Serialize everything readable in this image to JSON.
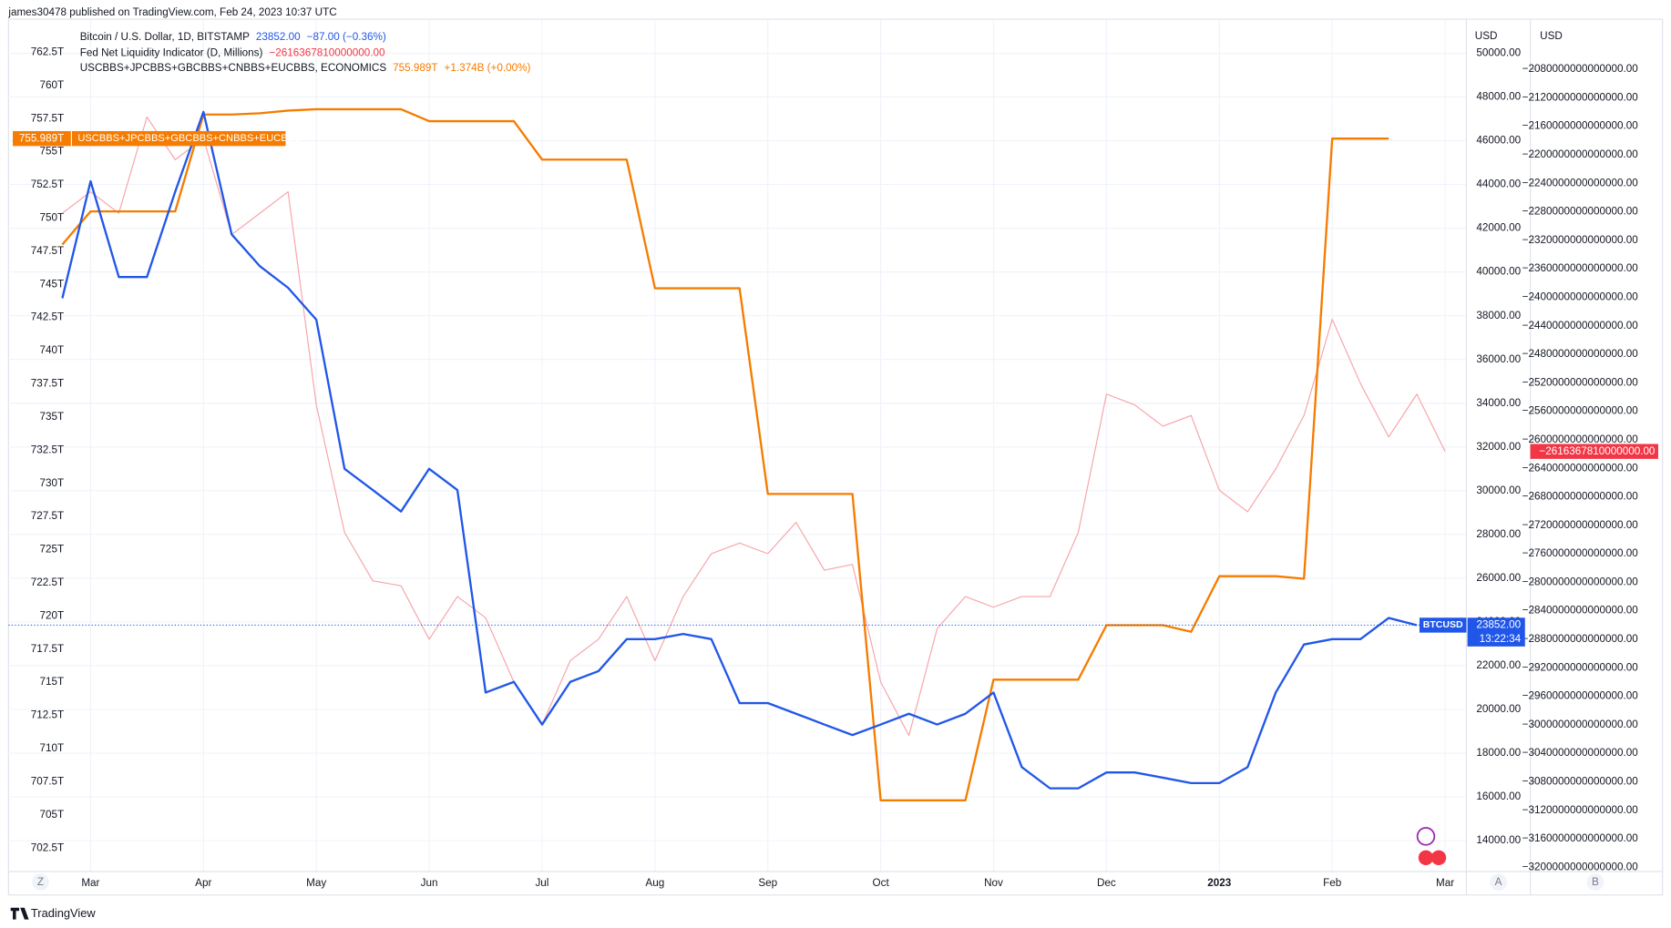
{
  "header": "james30478 published on TradingView.com, Feb 24, 2023 10:37 UTC",
  "footer": "TradingView",
  "buttons": {
    "zoom": "Z",
    "auto": "A",
    "log": "B"
  },
  "chart_data": {
    "type": "line",
    "categories": [
      null,
      "Mar",
      null,
      null,
      null,
      "Apr",
      null,
      null,
      null,
      "May",
      null,
      null,
      null,
      "Jun",
      null,
      null,
      null,
      "Jul",
      null,
      null,
      null,
      "Aug",
      null,
      null,
      null,
      "Sep",
      null,
      null,
      null,
      "Oct",
      null,
      null,
      null,
      "Nov",
      null,
      null,
      null,
      "Dec",
      null,
      null,
      null,
      "2023",
      null,
      null,
      null,
      "Feb",
      null,
      null,
      null,
      "Mar"
    ],
    "grid": true,
    "y_label": "USD",
    "y2_label": "USD",
    "ylim": [
      12490,
      51461
    ],
    "yticks": [
      {
        "value": 14000,
        "label": "14000.00"
      },
      {
        "value": 16000,
        "label": "16000.00"
      },
      {
        "value": 18000,
        "label": "18000.00"
      },
      {
        "value": 20000,
        "label": "20000.00"
      },
      {
        "value": 22000,
        "label": "22000.00"
      },
      {
        "value": 24000,
        "label": "24000.00"
      },
      {
        "value": 26000,
        "label": "26000.00"
      },
      {
        "value": 28000,
        "label": "28000.00"
      },
      {
        "value": 30000,
        "label": "30000.00"
      },
      {
        "value": 32000,
        "label": "32000.00"
      },
      {
        "value": 34000,
        "label": "34000.00"
      },
      {
        "value": 36000,
        "label": "36000.00"
      },
      {
        "value": 38000,
        "label": "38000.00"
      },
      {
        "value": 40000,
        "label": "40000.00"
      },
      {
        "value": 42000,
        "label": "42000.00"
      },
      {
        "value": 44000,
        "label": "44000.00"
      },
      {
        "value": 46000,
        "label": "46000.00"
      },
      {
        "value": 48000,
        "label": "48000.00"
      },
      {
        "value": 50000,
        "label": "50000.00"
      }
    ],
    "y2lim": [
      -3209000000000000,
      -2012700000000000
    ],
    "y2ticks": [
      {
        "value": -2080000000000000,
        "label": "−2080000000000000.00"
      },
      {
        "value": -2120000000000000,
        "label": "−2120000000000000.00"
      },
      {
        "value": -2160000000000000,
        "label": "−2160000000000000.00"
      },
      {
        "value": -2200000000000000,
        "label": "−2200000000000000.00"
      },
      {
        "value": -2240000000000000,
        "label": "−2240000000000000.00"
      },
      {
        "value": -2280000000000000,
        "label": "−2280000000000000.00"
      },
      {
        "value": -2320000000000000,
        "label": "−2320000000000000.00"
      },
      {
        "value": -2360000000000000,
        "label": "−2360000000000000.00"
      },
      {
        "value": -2400000000000000,
        "label": "−2400000000000000.00"
      },
      {
        "value": -2440000000000000,
        "label": "−2440000000000000.00"
      },
      {
        "value": -2480000000000000,
        "label": "−2480000000000000.00"
      },
      {
        "value": -2520000000000000,
        "label": "−2520000000000000.00"
      },
      {
        "value": -2560000000000000,
        "label": "−2560000000000000.00"
      },
      {
        "value": -2600000000000000,
        "label": "−2600000000000000.00"
      },
      {
        "value": -2640000000000000,
        "label": "−2640000000000000.00"
      },
      {
        "value": -2680000000000000,
        "label": "−2680000000000000.00"
      },
      {
        "value": -2720000000000000,
        "label": "−2720000000000000.00"
      },
      {
        "value": -2760000000000000,
        "label": "−2760000000000000.00"
      },
      {
        "value": -2800000000000000,
        "label": "−2800000000000000.00"
      },
      {
        "value": -2840000000000000,
        "label": "−2840000000000000.00"
      },
      {
        "value": -2880000000000000,
        "label": "−2880000000000000.00"
      },
      {
        "value": -2920000000000000,
        "label": "−2920000000000000.00"
      },
      {
        "value": -2960000000000000,
        "label": "−2960000000000000.00"
      },
      {
        "value": -3000000000000000,
        "label": "−3000000000000000.00"
      },
      {
        "value": -3040000000000000,
        "label": "−3040000000000000.00"
      },
      {
        "value": -3080000000000000,
        "label": "−3080000000000000.00"
      },
      {
        "value": -3120000000000000,
        "label": "−3120000000000000.00"
      },
      {
        "value": -3160000000000000,
        "label": "−3160000000000000.00"
      },
      {
        "value": -3200000000000000,
        "label": "−3200000000000000.00"
      }
    ],
    "y3lim": [
      700.57,
      764.83
    ],
    "y3ticks": [
      {
        "value": 702.5,
        "label": "702.5T"
      },
      {
        "value": 705,
        "label": "705T"
      },
      {
        "value": 707.5,
        "label": "707.5T"
      },
      {
        "value": 710,
        "label": "710T"
      },
      {
        "value": 712.5,
        "label": "712.5T"
      },
      {
        "value": 715,
        "label": "715T"
      },
      {
        "value": 717.5,
        "label": "717.5T"
      },
      {
        "value": 720,
        "label": "720T"
      },
      {
        "value": 722.5,
        "label": "722.5T"
      },
      {
        "value": 725,
        "label": "725T"
      },
      {
        "value": 727.5,
        "label": "727.5T"
      },
      {
        "value": 730,
        "label": "730T"
      },
      {
        "value": 732.5,
        "label": "732.5T"
      },
      {
        "value": 735,
        "label": "735T"
      },
      {
        "value": 737.5,
        "label": "737.5T"
      },
      {
        "value": 740,
        "label": "740T"
      },
      {
        "value": 742.5,
        "label": "742.5T"
      },
      {
        "value": 745,
        "label": "745T"
      },
      {
        "value": 747.5,
        "label": "747.5T"
      },
      {
        "value": 750,
        "label": "750T"
      },
      {
        "value": 752.5,
        "label": "752.5T"
      },
      {
        "value": 755,
        "label": "755T"
      },
      {
        "value": 757.5,
        "label": "757.5T"
      },
      {
        "value": 760,
        "label": "760T"
      },
      {
        "value": 762.5,
        "label": "762.5T"
      }
    ],
    "series": [
      {
        "name": "Bitcoin / U.S. Dollar, 1D, BITSTAMP",
        "tag": "BTCUSD",
        "last_label": "23852.00",
        "change_label": "−87.00 (−0.36%)",
        "countdown": "13:22:34",
        "color": "#2157e8",
        "axis": "y",
        "values": [
          38800,
          44150,
          39770,
          39770,
          43670,
          47320,
          41720,
          40260,
          39280,
          37820,
          31000,
          30030,
          29050,
          31000,
          30030,
          20770,
          21260,
          19310,
          21260,
          21750,
          23210,
          23210,
          23450,
          23210,
          20290,
          20290,
          19800,
          19310,
          18830,
          19310,
          19800,
          19310,
          19800,
          20770,
          17360,
          16390,
          16390,
          17120,
          17120,
          16880,
          16630,
          16630,
          17360,
          20770,
          22970,
          23210,
          23210,
          24180,
          23852,
          null
        ]
      },
      {
        "name": "Fed Net Liquidity Indicator (D, Millions)",
        "last_label": "−2616367810000000.00",
        "color": "#f6a4aa",
        "axis": "y2",
        "values": [
          -2282000000000000,
          -2252000000000000,
          -2282000000000000,
          -2147000000000000,
          -2207000000000000,
          -2177000000000000,
          -2312000000000000,
          -2282000000000000,
          -2252000000000000,
          -2551000000000000,
          -2730000000000000,
          -2798000000000000,
          -2805000000000000,
          -2880000000000000,
          -2820000000000000,
          -2850000000000000,
          -2940000000000000,
          -3000000000000000,
          -2910000000000000,
          -2880000000000000,
          -2820000000000000,
          -2910000000000000,
          -2820000000000000,
          -2760000000000000,
          -2745000000000000,
          -2760000000000000,
          -2716000000000000,
          -2783000000000000,
          -2775000000000000,
          -2940000000000000,
          -3015000000000000,
          -2865000000000000,
          -2820000000000000,
          -2835000000000000,
          -2820000000000000,
          -2820000000000000,
          -2730000000000000,
          -2536000000000000,
          -2551000000000000,
          -2581000000000000,
          -2566000000000000,
          -2671000000000000,
          -2701000000000000,
          -2641000000000000,
          -2566000000000000,
          -2431000000000000,
          -2521000000000000,
          -2596000000000000,
          -2536000000000000,
          -2616367810000000
        ]
      },
      {
        "name": "USCBBS+JPCBBS+GBCBBS+CNBBS+EUCBBS, ECONOMICS",
        "tag": "USCBBS+JPCBBS+GBCBBS+CNBBS+EUCBBS",
        "last_label": "755.989T",
        "change_label": "+1.374B (+0.00%)",
        "color": "#f57c00",
        "axis": "y3",
        "values": [
          748,
          750.5,
          750.5,
          750.5,
          750.5,
          757.8,
          757.8,
          757.9,
          758.1,
          758.2,
          758.2,
          758.2,
          758.2,
          757.3,
          757.3,
          757.3,
          757.3,
          754.4,
          754.4,
          754.4,
          754.4,
          744.7,
          744.7,
          744.7,
          744.7,
          729.2,
          729.2,
          729.2,
          729.2,
          706.1,
          706.1,
          706.1,
          706.1,
          715.2,
          715.2,
          715.2,
          715.2,
          719.3,
          719.3,
          719.3,
          718.8,
          723,
          723,
          723,
          722.8,
          755.989,
          755.989,
          755.989,
          null,
          null
        ]
      }
    ]
  }
}
